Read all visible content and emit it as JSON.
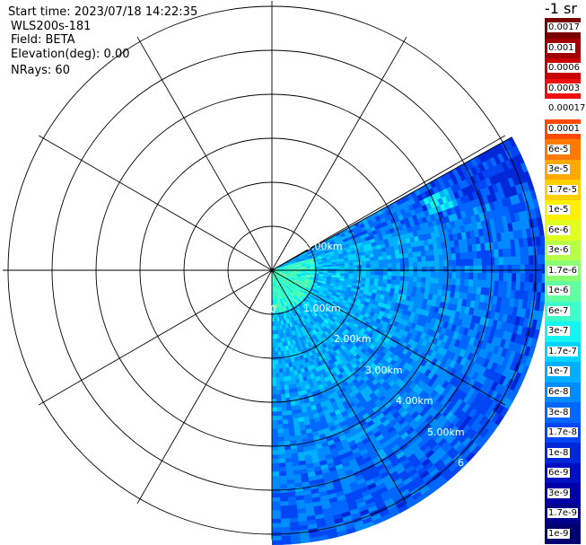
{
  "header": {
    "start_time": "Start time: 2023/07/18 14:22:35",
    "instrument": "WLS200s-181",
    "field": "Field: BETA",
    "elevation": "Elevation(deg): 0.00",
    "nrays": "NRays: 60"
  },
  "colorbar": {
    "unit_label": "-1 sr",
    "labels": [
      "0.0017",
      "0.001",
      "0.0006",
      "0.0003",
      "0.00017",
      "0.0001",
      "6e-5",
      "3e-5",
      "1.7e-5",
      "1e-5",
      "6e-6",
      "3e-6",
      "1.7e-6",
      "1e-6",
      "6e-7",
      "3e-7",
      "1.7e-7",
      "1e-7",
      "6e-8",
      "3e-8",
      "1.7e-8",
      "1e-8",
      "6e-9",
      "3e-9",
      "1.7e-9",
      "1e-9"
    ],
    "colors": [
      "#7a0000",
      "#a00000",
      "#c80000",
      "#ee1010",
      "#ffffff",
      "#ff4a00",
      "#ff7a00",
      "#ffa800",
      "#ffd000",
      "#fff000",
      "#e0ff20",
      "#b8ff48",
      "#8cff74",
      "#64ffa0",
      "#3cffca",
      "#14f4f0",
      "#00d4ff",
      "#00b0ff",
      "#008cff",
      "#0068ff",
      "#0046f4",
      "#0028d8",
      "#0010c0",
      "#0000a8",
      "#00008c",
      "#000070"
    ]
  },
  "range_rings": {
    "labels": [
      "1.00km",
      "2.00km",
      "3.00km",
      "4.00km",
      "5.00km",
      "6"
    ],
    "inner_label": "0.00km",
    "center_label": "0"
  }
}
